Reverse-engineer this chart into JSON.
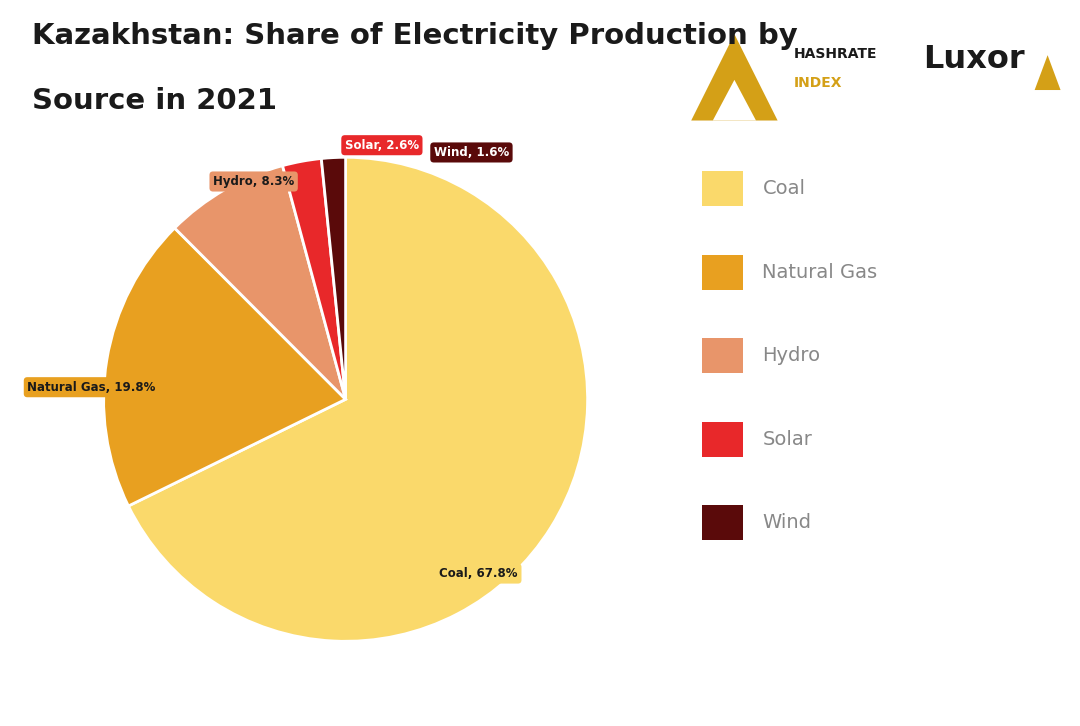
{
  "title_line1": "Kazakhstan: Share of Electricity Production by",
  "title_line2": "Source in 2021",
  "slices": [
    67.8,
    19.8,
    8.3,
    2.6,
    1.6
  ],
  "labels": [
    "Coal",
    "Natural Gas",
    "Hydro",
    "Solar",
    "Wind"
  ],
  "colors": [
    "#FAD96B",
    "#E8A020",
    "#E8956A",
    "#E8282A",
    "#5A0A0A"
  ],
  "label_texts": [
    "Coal, 67.8%",
    "Natural Gas, 19.8%",
    "Hydro, 8.3%",
    "Solar, 2.6%",
    "Wind, 1.6%"
  ],
  "label_bg_colors": [
    "#FAD96B",
    "#E8A020",
    "#E8956A",
    "#E8282A",
    "#5A0A0A"
  ],
  "label_text_colors": [
    "#1a1a1a",
    "#1a1a1a",
    "#1a1a1a",
    "#ffffff",
    "#ffffff"
  ],
  "background_color": "#FFFFFF",
  "title_fontsize": 21,
  "legend_fontsize": 14,
  "legend_text_color": "#888888"
}
